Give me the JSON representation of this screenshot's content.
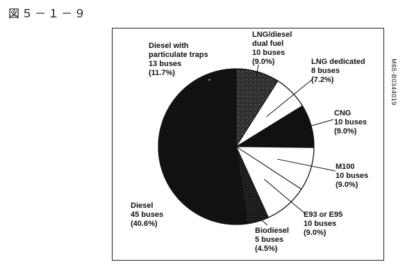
{
  "figure_label": "図５－１－９",
  "side_code": "M65-B0344019",
  "colors": {
    "dark": "#111111",
    "white": "#ffffff",
    "outline": "#111111"
  },
  "chart_data": {
    "type": "pie",
    "title": "",
    "slices": [
      {
        "label_lines": [
          "LNG/diesel",
          "dual fuel",
          "10 buses",
          "(9.0%)"
        ],
        "buses": 10,
        "percent": 9.0,
        "fill": "speckle"
      },
      {
        "label_lines": [
          "LNG dedicated",
          "8 buses",
          "(7.2%)"
        ],
        "buses": 8,
        "percent": 7.2,
        "fill": "white"
      },
      {
        "label_lines": [
          "CNG",
          "10 buses",
          "(9.0%)"
        ],
        "buses": 10,
        "percent": 9.0,
        "fill": "dark"
      },
      {
        "label_lines": [
          "M100",
          "10 buses",
          "(9.0%)"
        ],
        "buses": 10,
        "percent": 9.0,
        "fill": "white"
      },
      {
        "label_lines": [
          "E93 or E95",
          "10 buses",
          "(9.0%)"
        ],
        "buses": 10,
        "percent": 9.0,
        "fill": "white"
      },
      {
        "label_lines": [
          "Biodiesel",
          "5 buses",
          "(4.5%)"
        ],
        "buses": 5,
        "percent": 4.5,
        "fill": "dark-speckle"
      },
      {
        "label_lines": [
          "Diesel",
          "45 buses",
          "(40.6%)"
        ],
        "buses": 45,
        "percent": 40.6,
        "fill": "dark"
      },
      {
        "label_lines": [
          "Diesel with",
          "particulate traps",
          "13 buses",
          "(11.7%)"
        ],
        "buses": 13,
        "percent": 11.7,
        "fill": "dark"
      }
    ]
  }
}
